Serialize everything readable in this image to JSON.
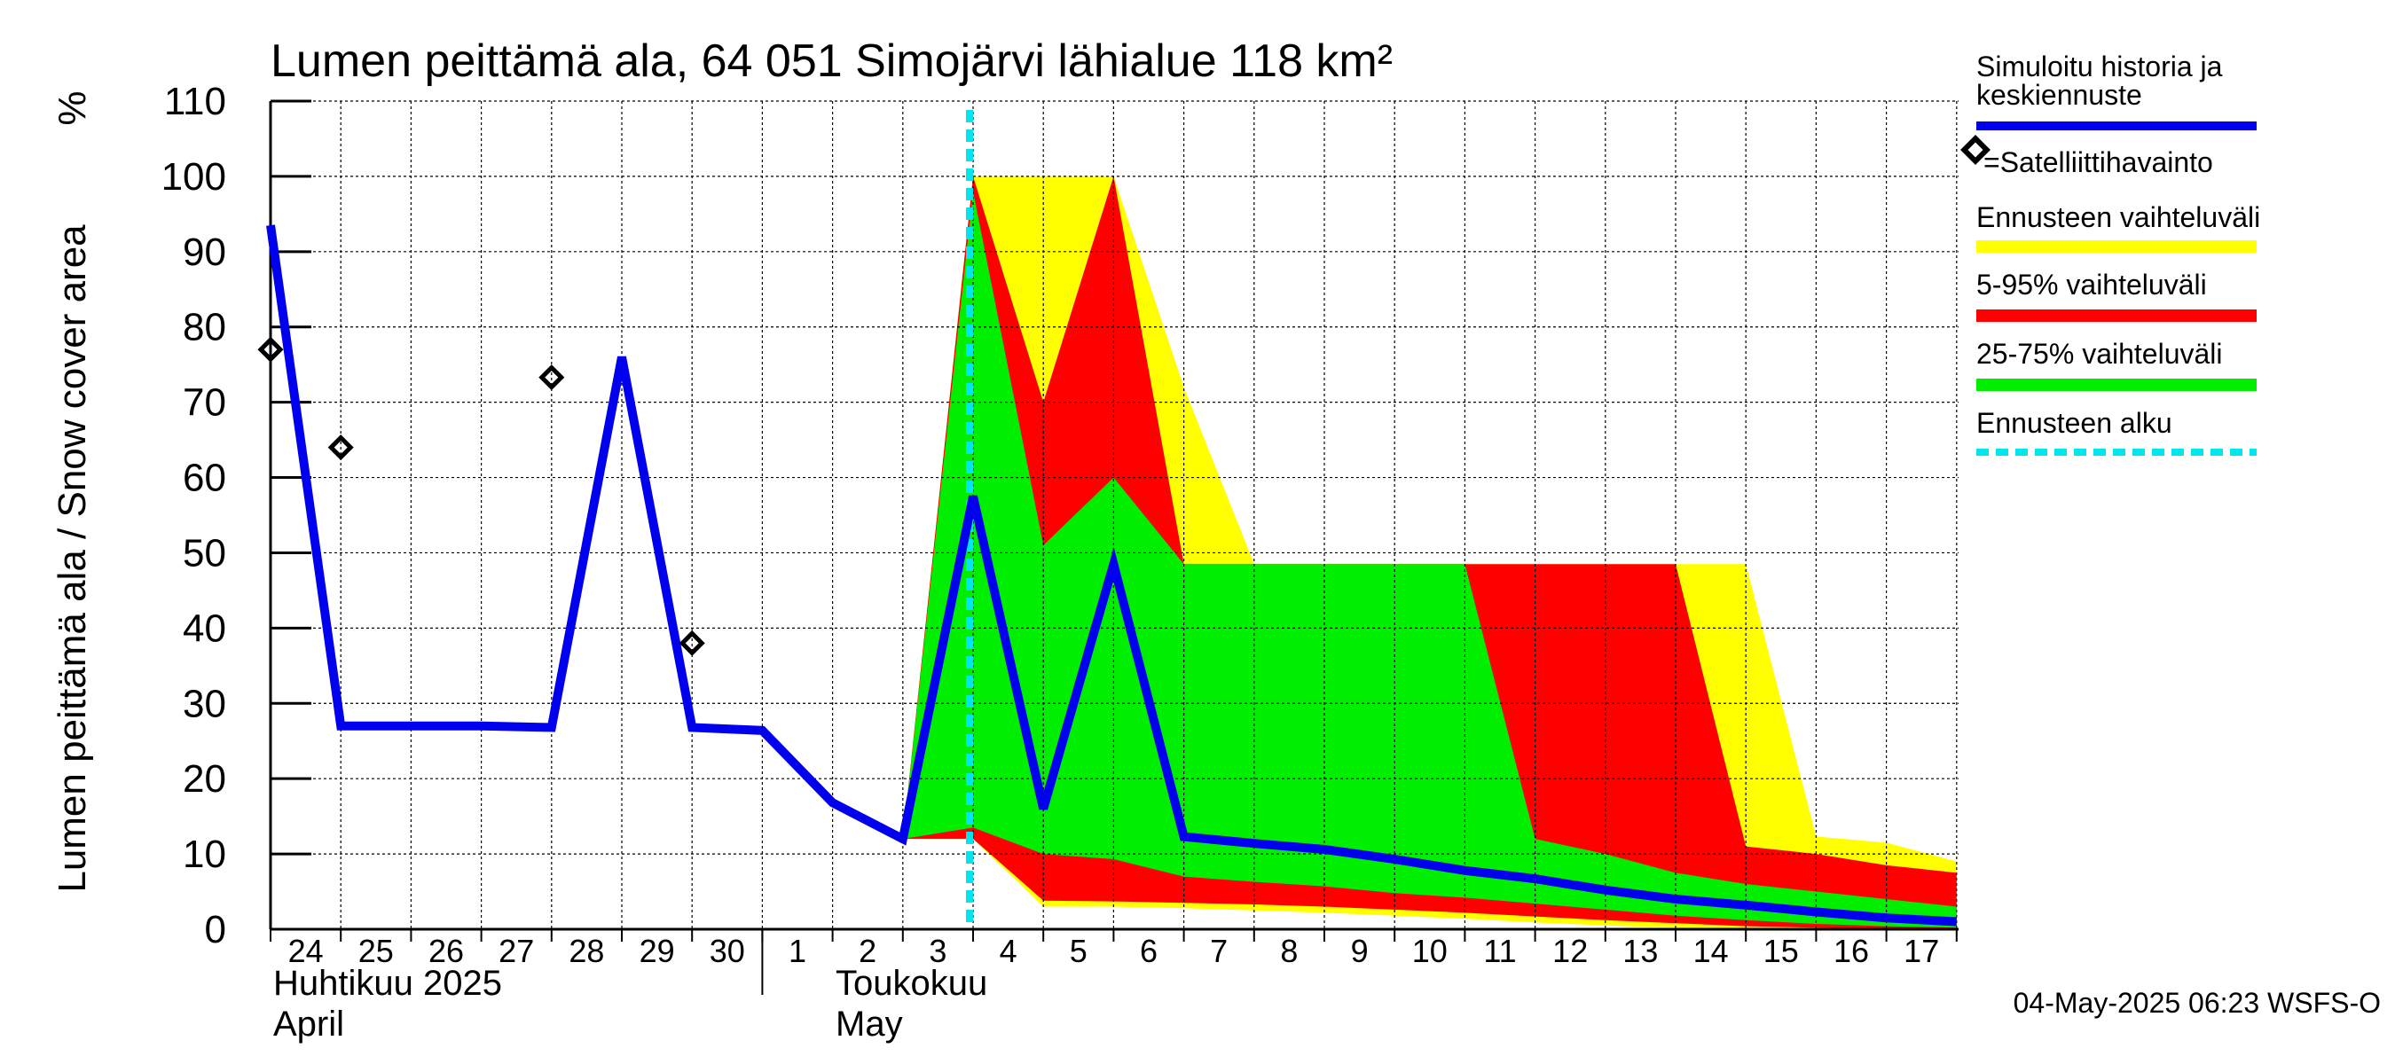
{
  "chart_data": {
    "type": "area",
    "title": "Lumen peittämä ala, 64 051 Simojärvi lähialue 118 km²",
    "unit_label": "%",
    "ylabel": "Lumen peittämä ala / Snow cover area",
    "ylim": [
      0,
      110
    ],
    "yticks": [
      "0",
      "10",
      "20",
      "30",
      "40",
      "50",
      "60",
      "70",
      "80",
      "90",
      "100",
      "110"
    ],
    "x_days": [
      "24",
      "25",
      "26",
      "27",
      "28",
      "29",
      "30",
      "1",
      "2",
      "3",
      "4",
      "5",
      "6",
      "7",
      "8",
      "9",
      "10",
      "11",
      "12",
      "13",
      "14",
      "15",
      "16",
      "17"
    ],
    "month_labels": [
      {
        "line1": "Huhtikuu  2025",
        "line2": "April"
      },
      {
        "line1": "Toukokuu",
        "line2": "May"
      }
    ],
    "grid": true,
    "forecast_start": "4 May 2025",
    "legend": [
      {
        "label": "Simuloitu historia ja keskiennuste",
        "color": "#0000ee",
        "style": "line"
      },
      {
        "label": "=Satelliittihavainto",
        "color": "#000000",
        "style": "marker"
      },
      {
        "label": "Ennusteen vaihteluväli",
        "color": "#ffff00",
        "style": "band"
      },
      {
        "label": "5-95% vaihteluväli",
        "color": "#ff0000",
        "style": "band"
      },
      {
        "label": "25-75% vaihteluväli",
        "color": "#00ee00",
        "style": "band"
      },
      {
        "label": "Ennusteen alku",
        "color": "#00e5ee",
        "style": "dashed"
      }
    ],
    "simulated": [
      [
        0,
        93.5
      ],
      [
        1,
        27
      ],
      [
        2,
        27
      ],
      [
        3,
        27
      ],
      [
        4,
        26.8
      ],
      [
        5,
        76
      ],
      [
        6,
        26.8
      ],
      [
        7,
        26.4
      ],
      [
        8,
        16.8
      ],
      [
        9,
        12
      ],
      [
        10,
        57.5
      ],
      [
        11,
        16
      ],
      [
        12,
        48.5
      ],
      [
        13,
        12.3
      ],
      [
        14,
        11.4
      ],
      [
        15,
        10.6
      ],
      [
        16,
        9.3
      ],
      [
        17,
        7.8
      ],
      [
        18,
        6.7
      ],
      [
        19,
        5.2
      ],
      [
        20,
        4
      ],
      [
        21,
        3.2
      ],
      [
        22,
        2.3
      ],
      [
        23,
        1.5
      ],
      [
        24,
        1
      ]
    ],
    "satellite": [
      [
        0,
        77
      ],
      [
        1,
        64
      ],
      [
        4,
        73.3
      ],
      [
        6,
        38
      ]
    ],
    "band_full": {
      "x": [
        9,
        10,
        11,
        12,
        13,
        14,
        15,
        16,
        17,
        18,
        19,
        20,
        21,
        22,
        23,
        24
      ],
      "upper": [
        12,
        100,
        100,
        100,
        72,
        48.5,
        48.5,
        48.5,
        48.5,
        48.5,
        48.5,
        48.5,
        48.5,
        12.3,
        11.5,
        9
      ],
      "lower": [
        12,
        12,
        3,
        3,
        2.8,
        2.5,
        2.2,
        1.8,
        1.4,
        0.9,
        0.5,
        0.2,
        0,
        0,
        0,
        0
      ]
    },
    "band_5_95": {
      "x": [
        9,
        10,
        11,
        12,
        13,
        14,
        15,
        16,
        17,
        18,
        19,
        20,
        21,
        22,
        23,
        24
      ],
      "upper": [
        12,
        100,
        70,
        100,
        48.5,
        48.5,
        48.5,
        48.5,
        48.5,
        48.5,
        48.5,
        48.5,
        11,
        10,
        8.5,
        7.5
      ],
      "lower": [
        12,
        12,
        3.8,
        3.7,
        3.5,
        3.3,
        3,
        2.6,
        2.2,
        1.7,
        1.2,
        0.8,
        0.4,
        0.2,
        0.1,
        0
      ]
    },
    "band_25_75": {
      "x": [
        9,
        10,
        11,
        12,
        13,
        14,
        15,
        16,
        17,
        18,
        19,
        20,
        21,
        22,
        23,
        24
      ],
      "upper": [
        12,
        98,
        51,
        60,
        48.5,
        48.5,
        48.5,
        48.5,
        48.5,
        12,
        10,
        7.5,
        6,
        5,
        4,
        3
      ],
      "lower": [
        12,
        13.5,
        10,
        9.3,
        7,
        6.3,
        5.7,
        4.8,
        4.2,
        3.4,
        2.6,
        1.8,
        1.2,
        0.7,
        0.4,
        0.2
      ]
    }
  },
  "footer": "04-May-2025 06:23 WSFS-O"
}
